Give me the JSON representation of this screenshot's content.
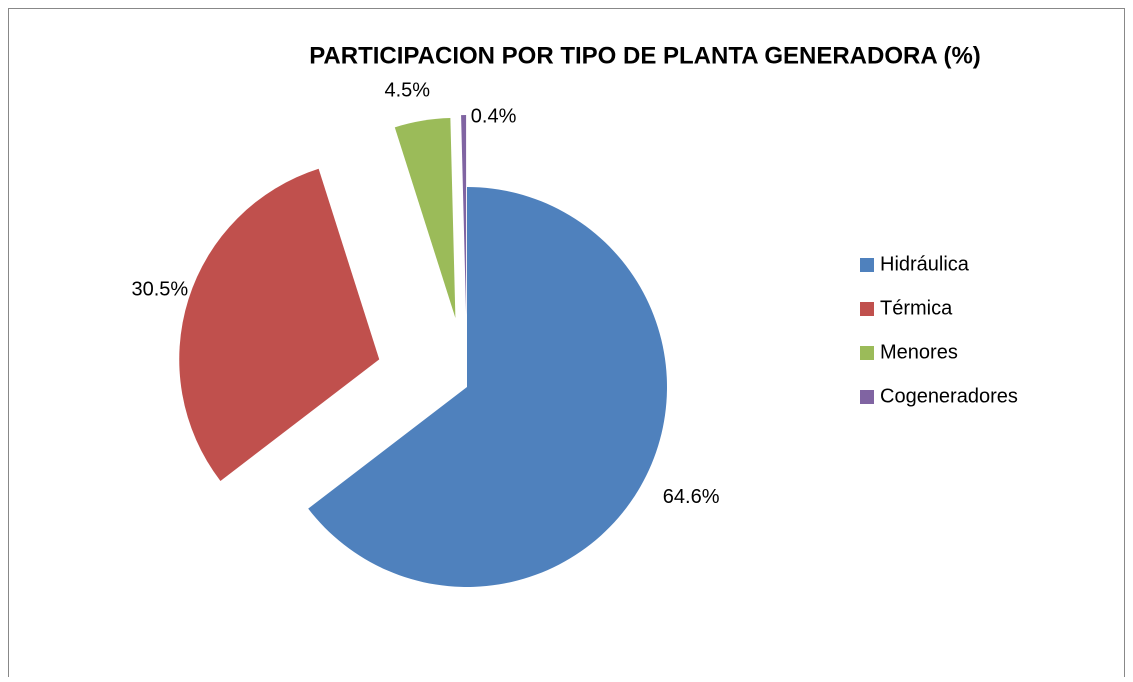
{
  "chart_data": {
    "type": "pie",
    "title": "PARTICIPACION POR TIPO DE PLANTA GENERADORA (%)",
    "categories": [
      "Hidráulica",
      "Térmica",
      "Menores",
      "Cogeneradores"
    ],
    "values": [
      64.6,
      30.5,
      4.5,
      0.4
    ],
    "value_labels": [
      "64.6%",
      "30.5%",
      "4.5%",
      "0.4%"
    ],
    "colors": [
      "#4f81bd",
      "#c0504d",
      "#9bbb59",
      "#8064a2"
    ],
    "legend": "right"
  }
}
